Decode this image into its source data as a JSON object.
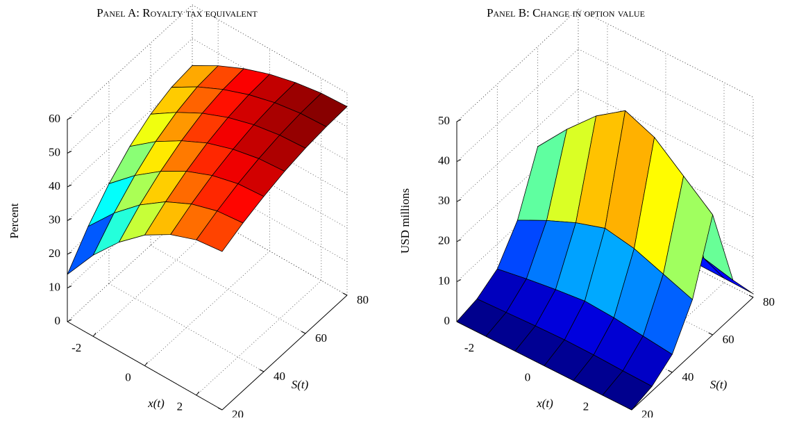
{
  "chart_data": [
    {
      "type": "surface",
      "title": "Panel A: Royalty tax equivalent",
      "xlabel": "x(t)",
      "ylabel": "S(t)",
      "zlabel": "Percent",
      "x": [
        -3,
        -2,
        -1,
        0,
        1,
        2,
        3
      ],
      "y": [
        20,
        30,
        40,
        50,
        60,
        70,
        80
      ],
      "z": [
        [
          14,
          24.1,
          32.3,
          38.8,
          43.3,
          46.1,
          47
        ],
        [
          22.6,
          30.9,
          37.7,
          43.0,
          46.7,
          49.0,
          49.8
        ],
        [
          29.6,
          36.4,
          42.0,
          46.4,
          49.5,
          51.4,
          52.0
        ],
        [
          35,
          40.8,
          45.4,
          49.1,
          51.6,
          53.2,
          53.8
        ],
        [
          38.9,
          43.8,
          47.9,
          51.0,
          53.2,
          54.5,
          55.0
        ],
        [
          41.2,
          45.7,
          49.3,
          52.1,
          54.1,
          55.3,
          55.7
        ],
        [
          42,
          46.3,
          49.8,
          52.5,
          54.4,
          55.6,
          56
        ]
      ],
      "xlim": [
        -3,
        3
      ],
      "ylim": [
        20,
        80
      ],
      "zlim": [
        0,
        60
      ],
      "xticks": [
        -2,
        0,
        2
      ],
      "yticks": [
        20,
        40,
        60,
        80
      ],
      "zticks": [
        0,
        10,
        20,
        30,
        40,
        50,
        60
      ],
      "colormap": "jet",
      "grid": true
    },
    {
      "type": "surface",
      "title": "Panel B: Change in option value",
      "xlabel": "x(t)",
      "ylabel": "S(t)",
      "zlabel": "USD millions",
      "x": [
        -3,
        -2,
        -1,
        0,
        1,
        2,
        3
      ],
      "y": [
        20,
        30,
        40,
        50,
        60,
        70,
        80
      ],
      "z": [
        [
          0,
          0,
          0,
          0,
          0,
          0,
          0
        ],
        [
          1.0,
          1.3,
          1.6,
          1.8,
          1.7,
          1.4,
          1.2
        ],
        [
          3.8,
          5.0,
          6.0,
          6.8,
          6.3,
          5.4,
          4.5
        ],
        [
          11.3,
          14.9,
          18.0,
          20.3,
          18.9,
          16.2,
          13.5
        ],
        [
          25,
          33,
          40,
          45,
          42,
          36,
          30
        ],
        [
          7.5,
          9.9,
          12,
          13.5,
          12.6,
          10.8,
          9
        ],
        [
          0.8,
          1.0,
          1.2,
          1.4,
          1.3,
          1.1,
          0.9
        ]
      ],
      "xlim": [
        -3,
        3
      ],
      "ylim": [
        20,
        80
      ],
      "zlim": [
        0,
        50
      ],
      "xticks": [
        -2,
        0,
        2
      ],
      "yticks": [
        20,
        40,
        60,
        80
      ],
      "zticks": [
        0,
        10,
        20,
        30,
        40,
        50
      ],
      "colormap": "jet",
      "grid": true
    }
  ]
}
